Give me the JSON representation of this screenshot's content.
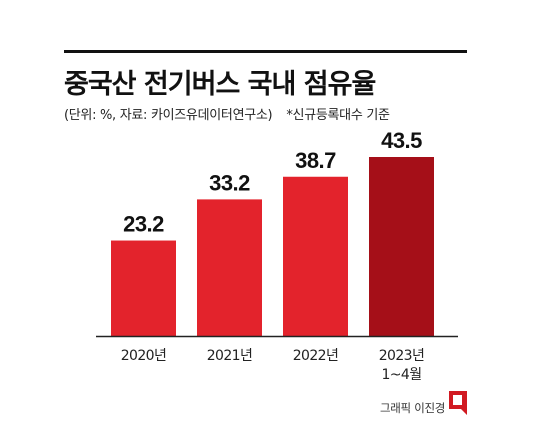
{
  "header": {
    "title": "중국산 전기버스 국내 점유율",
    "unit_note": "(단위: %, 자료: 카이즈유데이터연구소)",
    "basis_note": "*신규등록대수 기준"
  },
  "credit": {
    "text": "그래픽 이진경"
  },
  "colors": {
    "bar": "#e3232c",
    "bar_highlight": "#a50f18",
    "axis": "#222222",
    "logo": "#d11a22"
  },
  "chart_data": {
    "type": "bar",
    "categories": [
      "2020년",
      "2021년",
      "2022년",
      "2023년\n1~4월"
    ],
    "values": [
      23.2,
      33.2,
      38.7,
      43.5
    ],
    "value_labels": [
      "23.2",
      "33.2",
      "38.7",
      "43.5"
    ],
    "highlight_index": 3,
    "title": "중국산 전기버스 국내 점유율",
    "xlabel": "",
    "ylabel": "",
    "ylim": [
      0,
      45
    ],
    "grid": false,
    "legend": "none"
  }
}
